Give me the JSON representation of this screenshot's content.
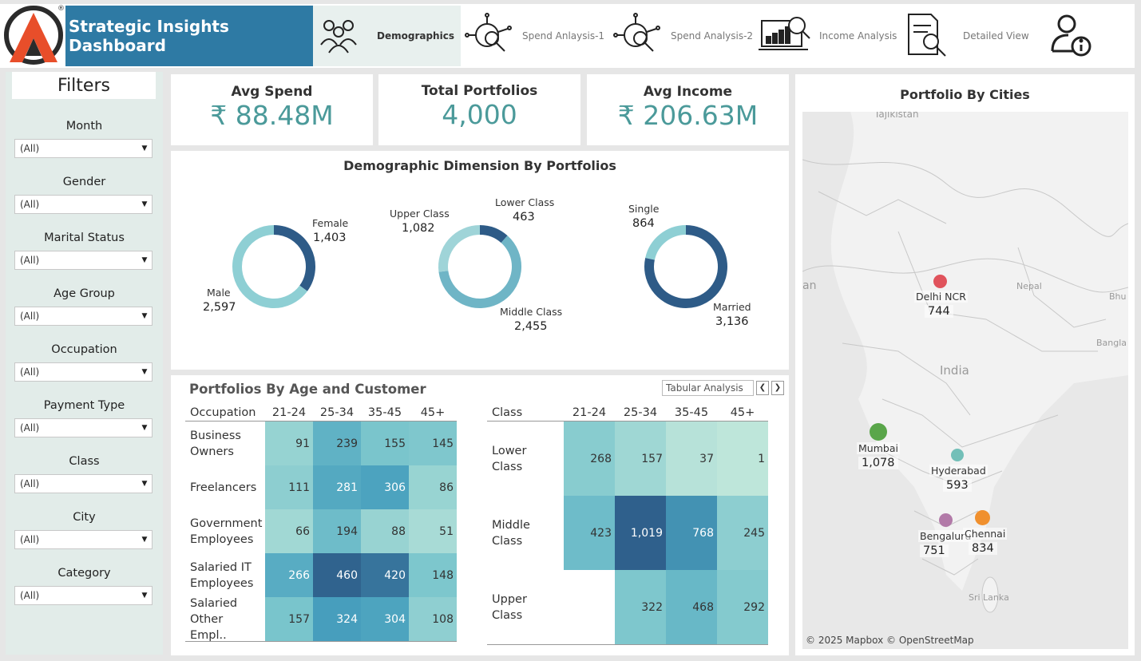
{
  "header": {
    "title": "Strategic Insights Dashboard",
    "tabs": [
      {
        "label": "Demographics",
        "icon": "people-group-icon"
      },
      {
        "label": "Spend Anlaysis-1",
        "icon": "money-search-icon"
      },
      {
        "label": "Spend Analysis-2",
        "icon": "money-search-icon"
      },
      {
        "label": "Income Analysis",
        "icon": "laptop-chart-icon"
      },
      {
        "label": "Detailed View",
        "icon": "document-search-icon"
      },
      {
        "label": "",
        "icon": "user-info-icon"
      }
    ],
    "logo_trademark": "®"
  },
  "filters": {
    "title": "Filters",
    "items": [
      {
        "label": "Month",
        "value": "(All)"
      },
      {
        "label": "Gender",
        "value": "(All)"
      },
      {
        "label": "Marital Status",
        "value": "(All)"
      },
      {
        "label": "Age Group",
        "value": "(All)"
      },
      {
        "label": "Occupation",
        "value": "(All)"
      },
      {
        "label": "Payment Type",
        "value": "(All)"
      },
      {
        "label": "Class",
        "value": "(All)"
      },
      {
        "label": "City",
        "value": "(All)"
      },
      {
        "label": "Category",
        "value": "(All)"
      }
    ]
  },
  "kpis": [
    {
      "title": "Avg Spend",
      "value": "₹ 88.48M"
    },
    {
      "title": "Total Portfolios",
      "value": "4,000"
    },
    {
      "title": "Avg Income",
      "value": "₹ 206.63M"
    }
  ],
  "demographics": {
    "title": "Demographic Dimension By Portfolios",
    "donuts": [
      {
        "slices": [
          {
            "label": "Female",
            "value": "1,403",
            "n": 1403,
            "color": "#2e5b87"
          },
          {
            "label": "Male",
            "value": "2,597",
            "n": 2597,
            "color": "#8ecfd4"
          }
        ]
      },
      {
        "slices": [
          {
            "label": "Lower Class",
            "value": "463",
            "n": 463,
            "color": "#2e5b87"
          },
          {
            "label": "Middle Class",
            "value": "2,455",
            "n": 2455,
            "color": "#6fb5c6"
          },
          {
            "label": "Upper Class",
            "value": "1,082",
            "n": 1082,
            "color": "#9fd4d8"
          }
        ]
      },
      {
        "slices": [
          {
            "label": "Married",
            "value": "3,136",
            "n": 3136,
            "color": "#2e5b87"
          },
          {
            "label": "Single",
            "value": "864",
            "n": 864,
            "color": "#8ecfd4"
          }
        ]
      }
    ]
  },
  "age_panel": {
    "title": "Portfolios By Age and Customer",
    "tabular_button": "Tabular Analysis",
    "prev": "❮",
    "next": "❯",
    "occupation_table": {
      "row_header": "Occupation",
      "columns": [
        "21-24",
        "25-34",
        "35-45",
        "45+"
      ],
      "rows": [
        {
          "label": "Business Owners",
          "values": [
            "91",
            "239",
            "155",
            "145"
          ]
        },
        {
          "label": "Freelancers",
          "values": [
            "111",
            "281",
            "306",
            "86"
          ]
        },
        {
          "label": "Government Employees",
          "values": [
            "66",
            "194",
            "88",
            "51"
          ]
        },
        {
          "label": "Salaried IT Employees",
          "values": [
            "266",
            "460",
            "420",
            "148"
          ]
        },
        {
          "label": "Salaried Other Empl..",
          "values": [
            "157",
            "324",
            "304",
            "108"
          ]
        }
      ]
    },
    "class_table": {
      "row_header": "Class",
      "columns": [
        "21-24",
        "25-34",
        "35-45",
        "45+"
      ],
      "rows": [
        {
          "label": "Lower Class",
          "values": [
            "268",
            "157",
            "37",
            "1"
          ]
        },
        {
          "label": "Middle Class",
          "values": [
            "423",
            "1,019",
            "768",
            "245"
          ]
        },
        {
          "label": "Upper Class",
          "values": [
            "",
            "322",
            "468",
            "292"
          ]
        }
      ]
    }
  },
  "map_panel": {
    "title": "Portfolio By Cities",
    "attribution": "© 2025 Mapbox © OpenStreetMap",
    "background_labels": [
      "Tajikistan",
      "an",
      "Nepal",
      "Bhu",
      "Bangla",
      "India",
      "Sri Lanka"
    ],
    "cities": [
      {
        "name": "Delhi NCR",
        "value": "744",
        "color": "#e0535c"
      },
      {
        "name": "Mumbai",
        "value": "1,078",
        "color": "#5aa64a"
      },
      {
        "name": "Hyderabad",
        "value": "593",
        "color": "#73bfb8"
      },
      {
        "name": "Bengaluru",
        "value": "751",
        "color": "#b27aa8"
      },
      {
        "name": "Chennai",
        "value": "834",
        "color": "#f0902e"
      }
    ]
  }
}
